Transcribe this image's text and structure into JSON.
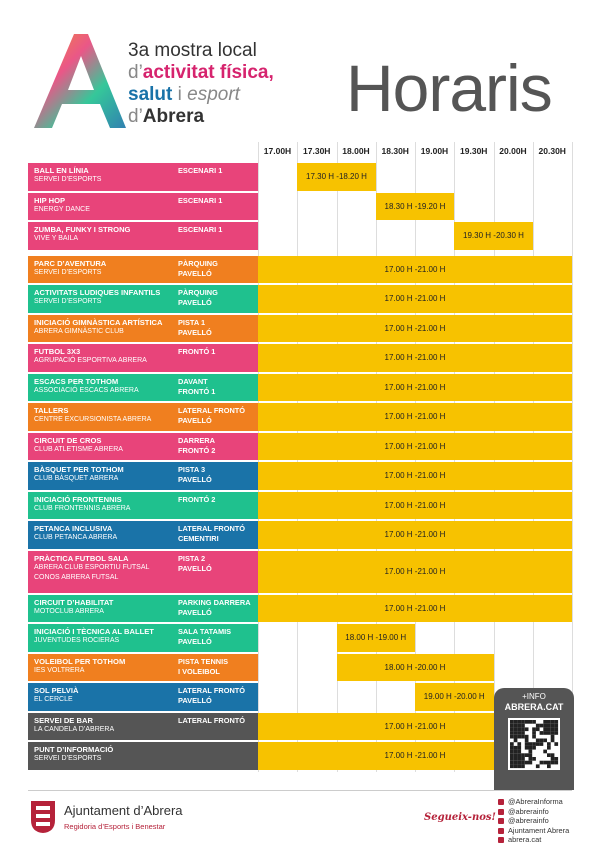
{
  "header": {
    "line1": "3a mostra local",
    "line2": [
      "d’",
      "activitat física,"
    ],
    "line3": [
      "salut",
      "i",
      "esport"
    ],
    "line4": [
      "d’",
      "Abrera"
    ]
  },
  "heading": "Horaris",
  "times": [
    "17.00H",
    "17.30H",
    "18.00H",
    "18.30H",
    "19.00H",
    "19.30H",
    "20.00H",
    "20.30H"
  ],
  "rows": [
    {
      "activity": "BALL EN LÍNIA",
      "organizer": [
        "SERVEI D’ESPORTS"
      ],
      "location": [
        "ESCENARI 1"
      ],
      "schedule": "17.30 H -18.20 H",
      "color": "#e8447a"
    },
    {
      "activity": "HIP HOP",
      "organizer": [
        "ENERGY DANCE"
      ],
      "location": [
        "ESCENARI 1"
      ],
      "schedule": "18.30 H -19.20 H",
      "color": "#e8447a"
    },
    {
      "activity": "ZUMBA, FUNKY I STRONG",
      "organizer": [
        "VIVE Y BAILA"
      ],
      "location": [
        "ESCENARI 1"
      ],
      "schedule": "19.30 H -20.30 H",
      "color": "#e8447a"
    },
    {
      "activity": "PARC D’AVENTURA",
      "organizer": [
        "SERVEI D’ESPORTS"
      ],
      "location": [
        "PÀRQUING",
        "PAVELLÓ"
      ],
      "schedule": "17.00 H -21.00 H",
      "color": "#f07f1f"
    },
    {
      "activity": "ACTIVITATS LUDIQUES INFANTILS",
      "organizer": [
        "SERVEI D’ESPORTS"
      ],
      "location": [
        "PÀRQUING",
        "PAVELLÓ"
      ],
      "schedule": "17.00 H -21.00 H",
      "color": "#1fc18e"
    },
    {
      "activity": "INICIACIÓ GIMNÀSTICA ARTÍSTICA",
      "organizer": [
        "ABRERA GIMNÀSTIC CLUB"
      ],
      "location": [
        "PISTA 1",
        "PAVELLÓ"
      ],
      "schedule": "17.00 H -21.00 H",
      "color": "#f07f1f"
    },
    {
      "activity": "FUTBOL 3X3",
      "organizer": [
        "AGRUPACIÓ ESPORTIVA ABRERA"
      ],
      "location": [
        "FRONTÓ 1"
      ],
      "schedule": "17.00 H -21.00 H",
      "color": "#e8447a"
    },
    {
      "activity": "ESCACS PER TOTHOM",
      "organizer": [
        "ASSOCIACIÓ ESCACS ABRERA"
      ],
      "location": [
        "DAVANT",
        "FRONTÓ 1"
      ],
      "schedule": "17.00 H -21.00 H",
      "color": "#1fc18e"
    },
    {
      "activity": "TALLERS",
      "organizer": [
        "CENTRE EXCURSIONISTA ABRERA"
      ],
      "location": [
        "LATERAL FRONTÓ",
        "PAVELLÓ"
      ],
      "schedule": "17.00 H -21.00 H",
      "color": "#f07f1f"
    },
    {
      "activity": "CIRCUIT DE CROS",
      "organizer": [
        "CLUB ATLETISME ABRERA"
      ],
      "location": [
        "DARRERA",
        "FRONTÓ 2"
      ],
      "schedule": "17.00 H -21.00 H",
      "color": "#e8447a"
    },
    {
      "activity": "BÀSQUET PER TOTHOM",
      "organizer": [
        "CLUB BÀSQUET ABRERA"
      ],
      "location": [
        "PISTA 3",
        "PAVELLÓ"
      ],
      "schedule": "17.00 H -21.00 H",
      "color": "#1a73a8"
    },
    {
      "activity": "INICIACIÓ FRONTENNIS",
      "organizer": [
        "CLUB FRONTENNIS ABRERA"
      ],
      "location": [
        "FRONTÓ 2"
      ],
      "schedule": "17.00 H -21.00 H",
      "color": "#1fc18e"
    },
    {
      "activity": "PETANCA INCLUSIVA",
      "organizer": [
        "CLUB PETANCA ABRERA"
      ],
      "location": [
        "LATERAL FRONTÓ",
        "CEMENTIRI"
      ],
      "schedule": "17.00 H -21.00 H",
      "color": "#1a73a8"
    },
    {
      "activity": "PRÀCTICA FUTBOL SALA",
      "organizer": [
        "ABRERA CLUB ESPORTIU FUTSAL",
        "CONOS ABRERA FUTSAL"
      ],
      "location": [
        "PISTA 2",
        "PAVELLÓ"
      ],
      "schedule": "17.00 H -21.00 H",
      "color": "#e8447a"
    },
    {
      "activity": "CIRCUIT D’HABILITAT",
      "organizer": [
        "MOTOCLUB ABRERA"
      ],
      "location": [
        "PARKING DARRERA",
        "PAVELLÓ"
      ],
      "schedule": "17.00 H -21.00 H",
      "color": "#1fc18e"
    },
    {
      "activity": "INICIACIÓ I TÈCNICA AL BALLET",
      "organizer": [
        "JUVENTUDES ROCIERAS"
      ],
      "location": [
        "SALA TATAMIS",
        "PAVELLÓ"
      ],
      "schedule": "18.00 H -19.00 H",
      "color": "#1fc18e"
    },
    {
      "activity": "VOLEIBOL PER TOTHOM",
      "organizer": [
        "IES VOLTRERA"
      ],
      "location": [
        "PISTA TENNIS",
        "I VOLEIBOL"
      ],
      "schedule": "18.00 H -20.00 H",
      "color": "#f07f1f"
    },
    {
      "activity": "SOL PELVIÀ",
      "organizer": [
        "EL CERCLE"
      ],
      "location": [
        "LATERAL FRONTÓ",
        "PAVELLÓ"
      ],
      "schedule": "19.00 H -20.00 H",
      "color": "#1a73a8"
    },
    {
      "activity": "SERVEI DE BAR",
      "organizer": [
        "LA CANDELA D’ABRERA"
      ],
      "location": [
        "LATERAL FRONTÓ"
      ],
      "schedule": "17.00 H -21.00 H",
      "color": "#555555"
    },
    {
      "activity": "PUNT D’INFORMACIÓ",
      "organizer": [
        "SERVEI D’ESPORTS"
      ],
      "location": [],
      "schedule": "17.00 H -21.00 H",
      "color": "#555555"
    }
  ],
  "info": {
    "label": "+INFO",
    "site": "ABRERA.CAT"
  },
  "footer": {
    "council": "Ajuntament d’Abrera",
    "department": "Regidoria d’Esports i Benestar",
    "follow": "Segueix-nos!",
    "social": [
      "@AbreraInforma",
      "@abrerainfo",
      "@abrerainfo",
      "Ajuntament Abrera",
      "abrera.cat"
    ]
  }
}
